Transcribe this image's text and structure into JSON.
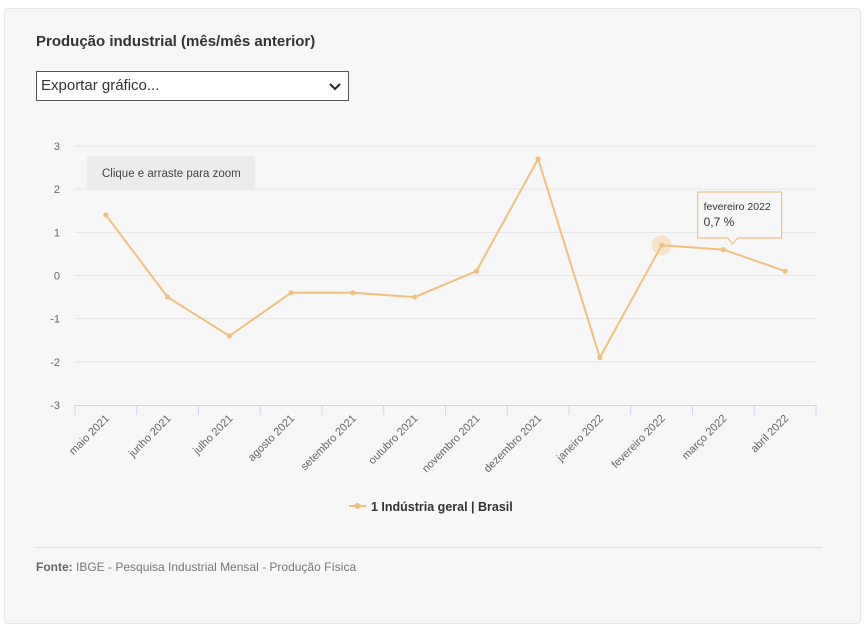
{
  "title": "Produção industrial (mês/mês anterior)",
  "export_select": {
    "selected": "Exportar gráfico..."
  },
  "zoom_hint": "Clique e arraste para zoom",
  "tooltip": {
    "category": "fevereiro 2022",
    "value_text": "0,7 %"
  },
  "source": {
    "label": "Fonte:",
    "text": "IBGE - Pesquisa Industrial Mensal - Produção Física"
  },
  "colors": {
    "series": "#f0c07e",
    "hover_halo": "#f5d5a8",
    "grid": "#e6e6e6",
    "axis": "#ccd6eb"
  },
  "chart_data": {
    "type": "line",
    "categories": [
      "maio 2021",
      "junho 2021",
      "julho 2021",
      "agosto 2021",
      "setembro 2021",
      "outubro 2021",
      "novembro 2021",
      "dezembro 2021",
      "janeiro 2022",
      "fevereiro 2022",
      "março 2022",
      "abril 2022"
    ],
    "series": [
      {
        "name": "1 Indústria geral | Brasil",
        "values": [
          1.4,
          -0.5,
          -1.4,
          -0.4,
          -0.4,
          -0.5,
          0.1,
          2.7,
          -1.9,
          0.7,
          0.6,
          0.1
        ]
      }
    ],
    "ylim": [
      -3,
      3
    ],
    "yticks": [
      "3",
      "2",
      "1",
      "0",
      "-1",
      "-2",
      "-3"
    ],
    "grid": true,
    "legend_position": "bottom-center",
    "highlighted_category": "fevereiro 2022"
  }
}
